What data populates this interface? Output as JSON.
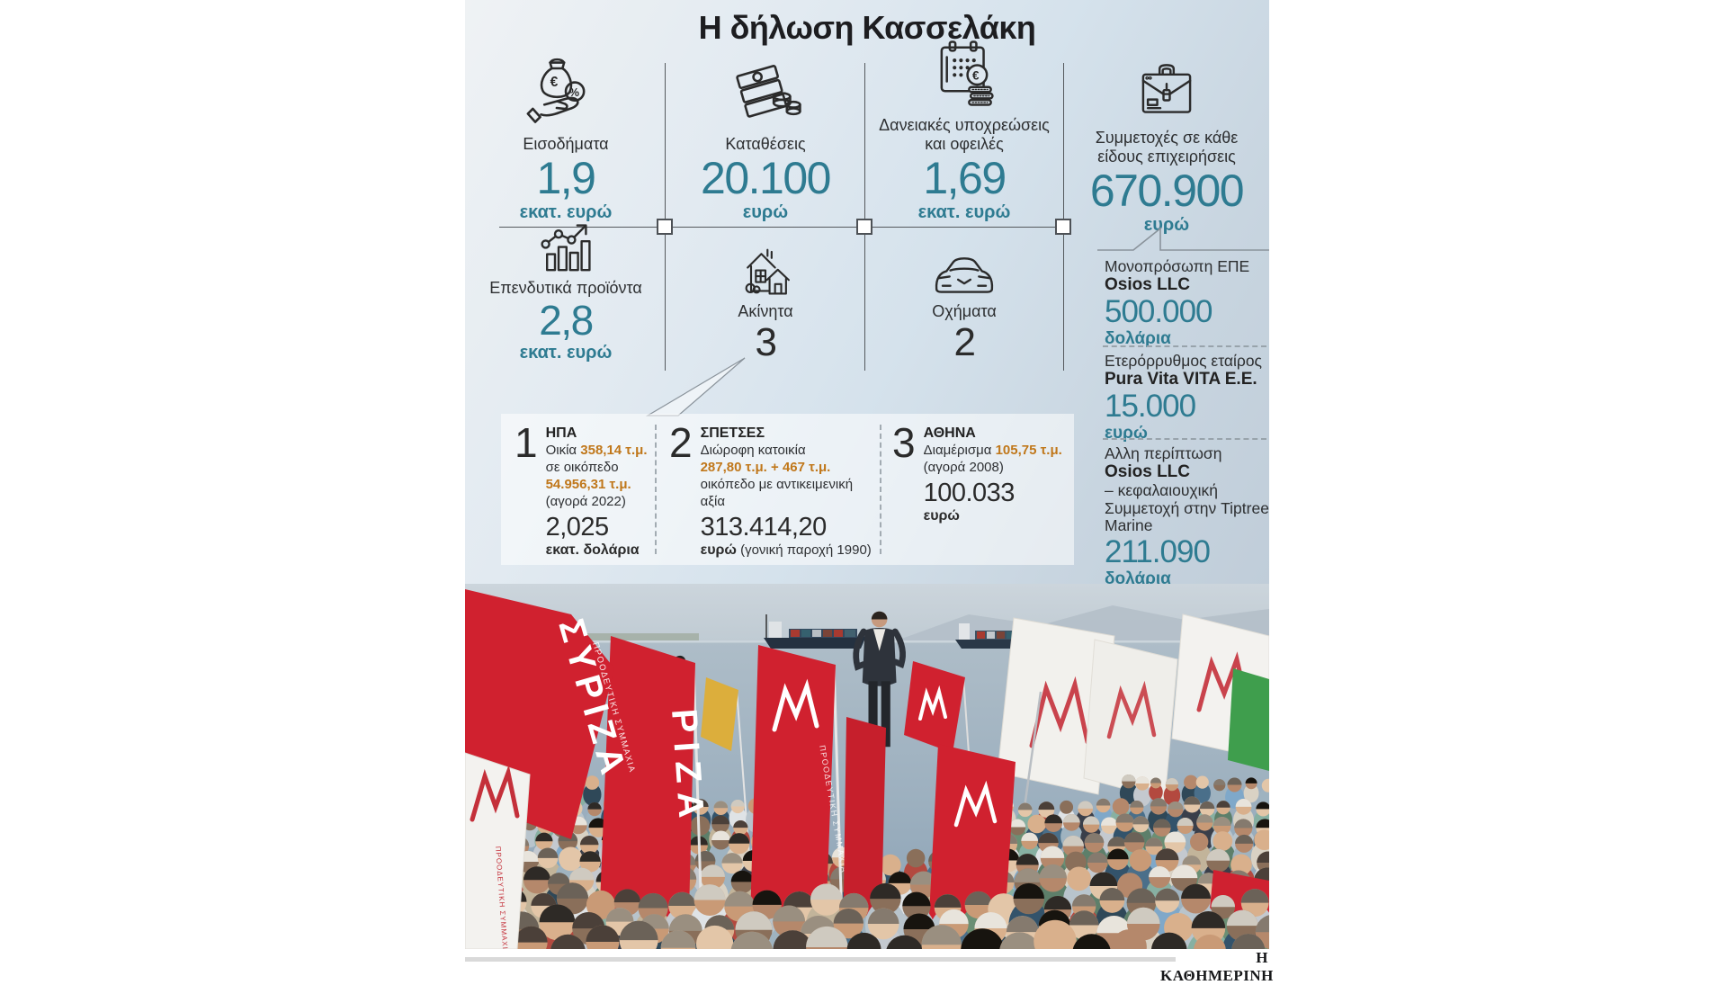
{
  "title": "Η δήλωση Κασσελάκη",
  "credit": "Η ΚΑΘΗΜΕΡΙΝΗ",
  "colors": {
    "teal": "#2e7b91",
    "orange": "#c0771a",
    "dark_text": "#2b2b2b",
    "flag_red": "#d0212f",
    "panel_top": "#eff2f4",
    "panel_bottom": "#c0cdd9"
  },
  "stats": [
    {
      "icon": "money-bag-icon",
      "label": "Εισοδήματα",
      "value": "1,9",
      "unit": "εκατ. ευρώ"
    },
    {
      "icon": "banknotes-icon",
      "label": "Καταθέσεις",
      "value": "20.100",
      "unit": "ευρώ"
    },
    {
      "icon": "calendar-icon",
      "label": "Δανειακές υποχρεώσεις και οφειλές",
      "value": "1,69",
      "unit": "εκατ. ευρώ"
    },
    {
      "icon": "briefcase-icon",
      "label": "Συμμετοχές σε κάθε είδους επιχειρήσεις",
      "value": "670.900",
      "unit": "ευρώ"
    },
    {
      "icon": "chart-icon",
      "label": "Επενδυτικά προϊόντα",
      "value": "2,8",
      "unit": "εκατ. ευρώ"
    },
    {
      "icon": "house-icon",
      "label": "Ακίνητα",
      "value": "3",
      "unit": ""
    },
    {
      "icon": "car-icon",
      "label": "Οχήματα",
      "value": "2",
      "unit": ""
    }
  ],
  "holdings": [
    {
      "line1": "Μονοπρόσωπη ΕΠΕ",
      "line2": "Osios LLC",
      "value": "500.000",
      "unit": "δολάρια"
    },
    {
      "line1": "Ετερόρρυθμος εταίρος",
      "line2": "Pura Vita VITA E.E.",
      "value": "15.000",
      "unit": "ευρώ"
    },
    {
      "line1": "Αλλη περίπτωση",
      "line2": "Osios LLC",
      "line3": "– κεφαλαιουχική Συμμετοχή στην Tiptree Marine",
      "value": "211.090",
      "unit": "δολάρια"
    }
  ],
  "properties": [
    {
      "num": "1",
      "place": "ΗΠΑ",
      "seg1": "Οικία ",
      "hl1": "358,14 τ.μ.",
      "line2": "σε οικόπεδο",
      "hl2": "54.956,31 τ.μ.",
      "line3": "(αγορά 2022)",
      "value": "2,025",
      "unit": "εκατ. δολάρια"
    },
    {
      "num": "2",
      "place": "ΣΠΕΤΣΕΣ",
      "line1": "Διώροφη κατοικία",
      "hl1": "287,80 τ.μ. + 467 τ.μ.",
      "line2": "οικόπεδο με αντικειμενική",
      "line3": "αξία",
      "value": "313.414,20",
      "unit": "ευρώ",
      "note": " (γονική παροχή 1990)"
    },
    {
      "num": "3",
      "place": "ΑΘΗΝΑ",
      "seg1": "Διαμέρισμα ",
      "hl1": "105,75 τ.μ.",
      "line2": "(αγορά 2008)",
      "value": "100.033",
      "unit": "ευρώ"
    }
  ],
  "photo": {
    "flag_main": "ΣΥΡΙΖΑ",
    "flag_sub": "ΠΡΟΟΔΕΥΤΙΚΗ ΣΥΜΜΑΧΙΑ",
    "flag_partial": "ΡΙΖΑ"
  }
}
